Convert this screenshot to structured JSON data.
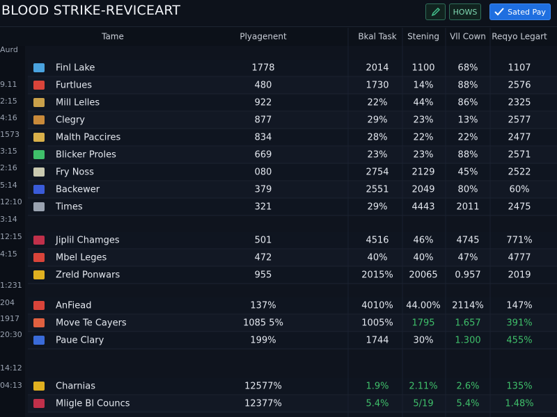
{
  "header": {
    "title": "BLOOD STRIKE-REVICEART",
    "buttons": [
      "HOWS",
      "Sated Pay"
    ]
  },
  "table": {
    "columns": [
      "Tame",
      "Plyagenent",
      "Bkal Task",
      "Stening",
      "Vll Cown",
      "Reqyo Legart"
    ],
    "side_labels": [
      "Aurd",
      "9.11",
      "2:15",
      "4:16",
      "1573",
      "3:15",
      "2:16",
      "5:14",
      "12:10",
      "3:14",
      "12:15",
      "4:15",
      "1:231",
      "204",
      "1917",
      "20:30",
      "14:12",
      "04:13"
    ],
    "groups": [
      {
        "rows": [
          {
            "name": "Finl Lake",
            "cells": [
              "1778",
              "2014",
              "1100",
              "68%",
              "1107"
            ]
          },
          {
            "name": "Furtlues",
            "cells": [
              "480",
              "1730",
              "14%",
              "88%",
              "2576"
            ]
          },
          {
            "name": "Mill Lelles",
            "cells": [
              "922",
              "22%",
              "44%",
              "86%",
              "2325"
            ]
          },
          {
            "name": "Clegry",
            "cells": [
              "877",
              "29%",
              "23%",
              "13%",
              "2577"
            ]
          },
          {
            "name": "Malth Paccires",
            "cells": [
              "834",
              "28%",
              "22%",
              "22%",
              "2477"
            ]
          },
          {
            "name": "Blicker Proles",
            "cells": [
              "669",
              "23%",
              "23%",
              "88%",
              "2571"
            ]
          },
          {
            "name": "Fry Noss",
            "cells": [
              "080",
              "2754",
              "2129",
              "45%",
              "2522"
            ]
          },
          {
            "name": "Backewer",
            "cells": [
              "379",
              "2551",
              "2049",
              "80%",
              "60%"
            ]
          },
          {
            "name": "Times",
            "cells": [
              "321",
              "29%",
              "4443",
              "2011",
              "2475"
            ]
          }
        ]
      },
      {
        "rows": [
          {
            "name": "Jiplil Chamges",
            "cells": [
              "501",
              "4516",
              "46%",
              "4745",
              "771%"
            ]
          },
          {
            "name": "Mbel Leges",
            "cells": [
              "472",
              "40%",
              "40%",
              "47%",
              "4777"
            ]
          },
          {
            "name": "Zreld Ponwars",
            "cells": [
              "955",
              "2015%",
              "20065",
              "0.957",
              "2019"
            ]
          }
        ]
      },
      {
        "rows": [
          {
            "name": "AnFiead",
            "cells": [
              "137%",
              "4010%",
              "44.00%",
              "2114%",
              "147%"
            ]
          },
          {
            "name": "Move Te Cayers",
            "cells": [
              "1085 5%",
              "1005%",
              "1795",
              "1.657",
              "391%"
            ],
            "cell_colors": [
              "#e4e8ef",
              "#e4e8ef",
              "#3fbf6a",
              "#3fbf6a",
              "#3fbf6a"
            ]
          },
          {
            "name": "Paue Clary",
            "cells": [
              "199%",
              "1744",
              "30%",
              "1.300",
              "455%"
            ],
            "cell_colors": [
              "#e4e8ef",
              "#e4e8ef",
              "#e4e8ef",
              "#3fbf6a",
              "#3fbf6a"
            ]
          }
        ]
      },
      {
        "rows": [
          {
            "name": "Charnias",
            "cells": [
              "12577%",
              "1.9%",
              "2.11%",
              "2.6%",
              "135%"
            ],
            "cell_colors": [
              "#e4e8ef",
              "#3fbf6a",
              "#3fbf6a",
              "#3fbf6a",
              "#3fbf6a"
            ]
          },
          {
            "name": "Mligle Bl Councs",
            "cells": [
              "12377%",
              "5.4%",
              "5/19",
              "5.4%",
              "1.48%"
            ],
            "cell_colors": [
              "#e4e8ef",
              "#3fbf6a",
              "#3fbf6a",
              "#3fbf6a",
              "#3fbf6a"
            ]
          }
        ]
      }
    ]
  }
}
